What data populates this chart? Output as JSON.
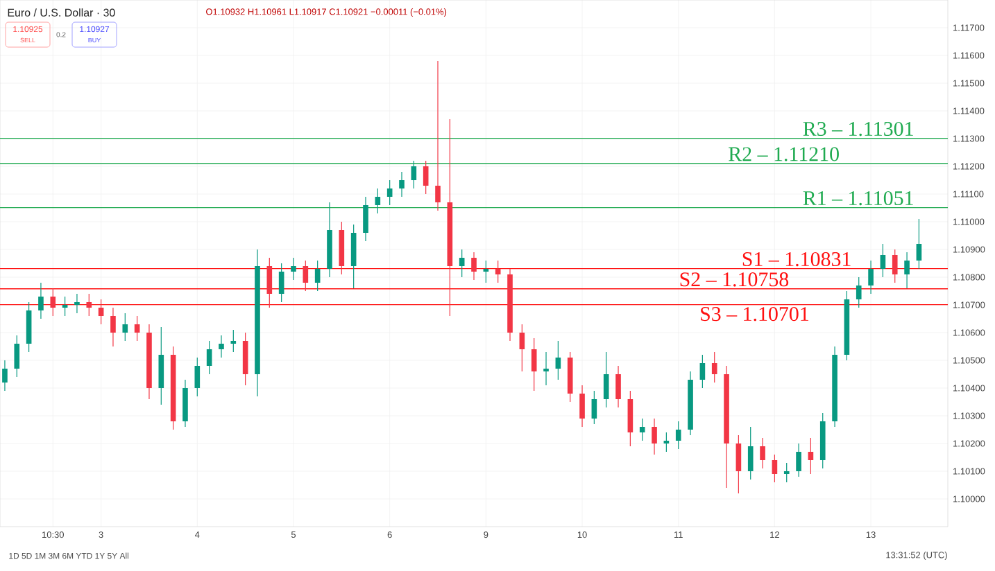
{
  "chart_data": {
    "type": "candlestick",
    "title": "Euro / U.S. Dollar · 30",
    "subtitle": "O1.10932 H1.10961 L1.10917 C1.10921 −0.00011 (−0.01%)",
    "annotations": [
      "1.10925",
      "SELL",
      "0.2",
      "1.10927",
      "BUY",
      "1D   5D   1M   3M   6M   YTD   1Y   5Y   All",
      "13:31:52 (UTC)"
    ],
    "categories": [
      null,
      null,
      null,
      null,
      "10:30",
      null,
      null,
      null,
      "3",
      null,
      null,
      null,
      null,
      null,
      null,
      null,
      "4",
      null,
      null,
      null,
      null,
      null,
      null,
      null,
      "5",
      null,
      null,
      null,
      null,
      null,
      null,
      null,
      "6",
      null,
      null,
      null,
      null,
      null,
      null,
      null,
      "9",
      null,
      null,
      null,
      null,
      null,
      null,
      null,
      "10",
      null,
      null,
      null,
      null,
      null,
      null,
      null,
      "11",
      null,
      null,
      null,
      null,
      null,
      null,
      null,
      "12",
      null,
      null,
      null,
      null,
      null,
      null,
      null,
      "13",
      null,
      null,
      null,
      null
    ],
    "ohlc": [
      [
        1.1042,
        1.105,
        1.1039,
        1.1047
      ],
      [
        1.1047,
        1.1059,
        1.1044,
        1.1056
      ],
      [
        1.1056,
        1.1071,
        1.1053,
        1.1068
      ],
      [
        1.1068,
        1.1078,
        1.1065,
        1.1073
      ],
      [
        1.1073,
        1.1076,
        1.1066,
        1.1069
      ],
      [
        1.1069,
        1.1073,
        1.1066,
        1.107
      ],
      [
        1.107,
        1.1074,
        1.1067,
        1.1071
      ],
      [
        1.1071,
        1.1074,
        1.1066,
        1.1069
      ],
      [
        1.1069,
        1.1072,
        1.1063,
        1.1066
      ],
      [
        1.1066,
        1.1069,
        1.1055,
        1.106
      ],
      [
        1.106,
        1.1067,
        1.1057,
        1.1063
      ],
      [
        1.1063,
        1.1066,
        1.1057,
        1.106
      ],
      [
        1.106,
        1.1063,
        1.1036,
        1.104
      ],
      [
        1.104,
        1.1062,
        1.1034,
        1.1052
      ],
      [
        1.1052,
        1.1055,
        1.1025,
        1.1028
      ],
      [
        1.1028,
        1.1043,
        1.1026,
        1.104
      ],
      [
        1.104,
        1.1051,
        1.1037,
        1.1048
      ],
      [
        1.1048,
        1.1057,
        1.1045,
        1.1054
      ],
      [
        1.1054,
        1.1059,
        1.1051,
        1.1056
      ],
      [
        1.1056,
        1.1061,
        1.1053,
        1.1057
      ],
      [
        1.1057,
        1.106,
        1.1041,
        1.1045
      ],
      [
        1.1045,
        1.109,
        1.1037,
        1.1084
      ],
      [
        1.1084,
        1.1087,
        1.1069,
        1.1074
      ],
      [
        1.1074,
        1.1085,
        1.1071,
        1.1082
      ],
      [
        1.1082,
        1.1087,
        1.1079,
        1.1084
      ],
      [
        1.1084,
        1.1086,
        1.1075,
        1.1078
      ],
      [
        1.1078,
        1.1086,
        1.1075,
        1.1083
      ],
      [
        1.1083,
        1.1107,
        1.108,
        1.1097
      ],
      [
        1.1097,
        1.11,
        1.1081,
        1.1084
      ],
      [
        1.1084,
        1.1099,
        1.1076,
        1.1096
      ],
      [
        1.1096,
        1.1109,
        1.1093,
        1.1106
      ],
      [
        1.1106,
        1.1112,
        1.1103,
        1.1109
      ],
      [
        1.1109,
        1.1115,
        1.1106,
        1.1112
      ],
      [
        1.1112,
        1.1118,
        1.1109,
        1.1115
      ],
      [
        1.1115,
        1.1122,
        1.1112,
        1.112
      ],
      [
        1.112,
        1.1122,
        1.111,
        1.1113
      ],
      [
        1.1113,
        1.1158,
        1.1104,
        1.1107
      ],
      [
        1.1107,
        1.1137,
        1.1066,
        1.1084
      ],
      [
        1.1084,
        1.109,
        1.108,
        1.1087
      ],
      [
        1.1087,
        1.1089,
        1.1079,
        1.1082
      ],
      [
        1.1082,
        1.1086,
        1.1078,
        1.1083
      ],
      [
        1.1083,
        1.1086,
        1.1078,
        1.1081
      ],
      [
        1.1081,
        1.1083,
        1.1057,
        1.106
      ],
      [
        1.106,
        1.1063,
        1.1046,
        1.1054
      ],
      [
        1.1054,
        1.1058,
        1.1039,
        1.1046
      ],
      [
        1.1046,
        1.1053,
        1.1041,
        1.1047
      ],
      [
        1.1047,
        1.1057,
        1.1043,
        1.1051
      ],
      [
        1.1051,
        1.1053,
        1.1035,
        1.1038
      ],
      [
        1.1038,
        1.1041,
        1.1026,
        1.1029
      ],
      [
        1.1029,
        1.1039,
        1.1027,
        1.1036
      ],
      [
        1.1036,
        1.1053,
        1.1033,
        1.1045
      ],
      [
        1.1045,
        1.1048,
        1.1033,
        1.1036
      ],
      [
        1.1036,
        1.1039,
        1.1019,
        1.1024
      ],
      [
        1.1024,
        1.1029,
        1.1021,
        1.1026
      ],
      [
        1.1026,
        1.1029,
        1.1016,
        1.102
      ],
      [
        1.102,
        1.1024,
        1.1017,
        1.1021
      ],
      [
        1.1021,
        1.1028,
        1.1018,
        1.1025
      ],
      [
        1.1025,
        1.1046,
        1.1023,
        1.1043
      ],
      [
        1.1043,
        1.1052,
        1.104,
        1.1049
      ],
      [
        1.1049,
        1.1053,
        1.1042,
        1.1045
      ],
      [
        1.1045,
        1.1048,
        1.1004,
        1.102
      ],
      [
        1.102,
        1.1023,
        1.1002,
        1.101
      ],
      [
        1.101,
        1.1026,
        1.1007,
        1.1019
      ],
      [
        1.1019,
        1.1022,
        1.1011,
        1.1014
      ],
      [
        1.1014,
        1.1016,
        1.1006,
        1.1009
      ],
      [
        1.1009,
        1.1013,
        1.1006,
        1.101
      ],
      [
        1.101,
        1.102,
        1.1008,
        1.1017
      ],
      [
        1.1017,
        1.1022,
        1.1009,
        1.1014
      ],
      [
        1.1014,
        1.1031,
        1.1011,
        1.1028
      ],
      [
        1.1028,
        1.1055,
        1.1026,
        1.1052
      ],
      [
        1.1052,
        1.1075,
        1.105,
        1.1072
      ],
      [
        1.1072,
        1.108,
        1.1069,
        1.1077
      ],
      [
        1.1077,
        1.1086,
        1.1074,
        1.1083
      ],
      [
        1.1083,
        1.1092,
        1.108,
        1.1088
      ],
      [
        1.1088,
        1.109,
        1.1078,
        1.1081
      ],
      [
        1.1081,
        1.1089,
        1.1076,
        1.1086
      ],
      [
        1.1086,
        1.1101,
        1.1083,
        1.1092
      ]
    ],
    "colors": [
      "#089981",
      "#089981",
      "#089981",
      "#089981",
      "#f23645",
      "#089981",
      "#089981",
      "#f23645",
      "#f23645",
      "#f23645",
      "#089981",
      "#f23645",
      "#f23645",
      "#089981",
      "#f23645",
      "#089981",
      "#089981",
      "#089981",
      "#089981",
      "#089981",
      "#f23645",
      "#089981",
      "#f23645",
      "#089981",
      "#089981",
      "#f23645",
      "#089981",
      "#089981",
      "#f23645",
      "#089981",
      "#089981",
      "#089981",
      "#089981",
      "#089981",
      "#089981",
      "#f23645",
      "#f23645",
      "#f23645",
      "#089981",
      "#f23645",
      "#089981",
      "#f23645",
      "#f23645",
      "#f23645",
      "#f23645",
      "#089981",
      "#089981",
      "#f23645",
      "#f23645",
      "#089981",
      "#089981",
      "#f23645",
      "#f23645",
      "#089981",
      "#f23645",
      "#089981",
      "#089981",
      "#089981",
      "#089981",
      "#f23645",
      "#f23645",
      "#f23645",
      "#089981",
      "#f23645",
      "#f23645",
      "#089981",
      "#089981",
      "#f23645",
      "#089981",
      "#089981",
      "#089981",
      "#089981",
      "#089981",
      "#089981",
      "#f23645",
      "#089981",
      "#089981"
    ],
    "ylim": [
      1.099,
      1.118
    ],
    "yticks": [
      {
        "value": 1.1,
        "label": "1.10000"
      },
      {
        "value": 1.101,
        "label": "1.10100"
      },
      {
        "value": 1.102,
        "label": "1.10200"
      },
      {
        "value": 1.103,
        "label": "1.10300"
      },
      {
        "value": 1.104,
        "label": "1.10400"
      },
      {
        "value": 1.105,
        "label": "1.10500"
      },
      {
        "value": 1.106,
        "label": "1.10600"
      },
      {
        "value": 1.107,
        "label": "1.10700"
      },
      {
        "value": 1.108,
        "label": "1.10800"
      },
      {
        "value": 1.109,
        "label": "1.10900"
      },
      {
        "value": 1.11,
        "label": "1.11000"
      },
      {
        "value": 1.111,
        "label": "1.11100"
      },
      {
        "value": 1.112,
        "label": "1.11200"
      },
      {
        "value": 1.113,
        "label": "1.11300"
      },
      {
        "value": 1.114,
        "label": "1.11400"
      },
      {
        "value": 1.115,
        "label": "1.11500"
      },
      {
        "value": 1.116,
        "label": "1.11600"
      },
      {
        "value": 1.117,
        "label": "1.11700"
      }
    ],
    "grid": true,
    "ref_lines": [
      {
        "axis": "y",
        "value": 1.11301,
        "label": "R3 – 1.11301",
        "color": "#1faa50"
      },
      {
        "axis": "y",
        "value": 1.1121,
        "label": "R2 – 1.11210",
        "color": "#1faa50"
      },
      {
        "axis": "y",
        "value": 1.11051,
        "label": "R1 – 1.11051",
        "color": "#1faa50"
      },
      {
        "axis": "y",
        "value": 1.10831,
        "label": "S1 – 1.10831",
        "color": "#ff1010"
      },
      {
        "axis": "y",
        "value": 1.10758,
        "label": "S2 – 1.10758",
        "color": "#ff1010"
      },
      {
        "axis": "y",
        "value": 1.10701,
        "label": "S3 – 1.10701",
        "color": "#ff1010"
      }
    ]
  }
}
